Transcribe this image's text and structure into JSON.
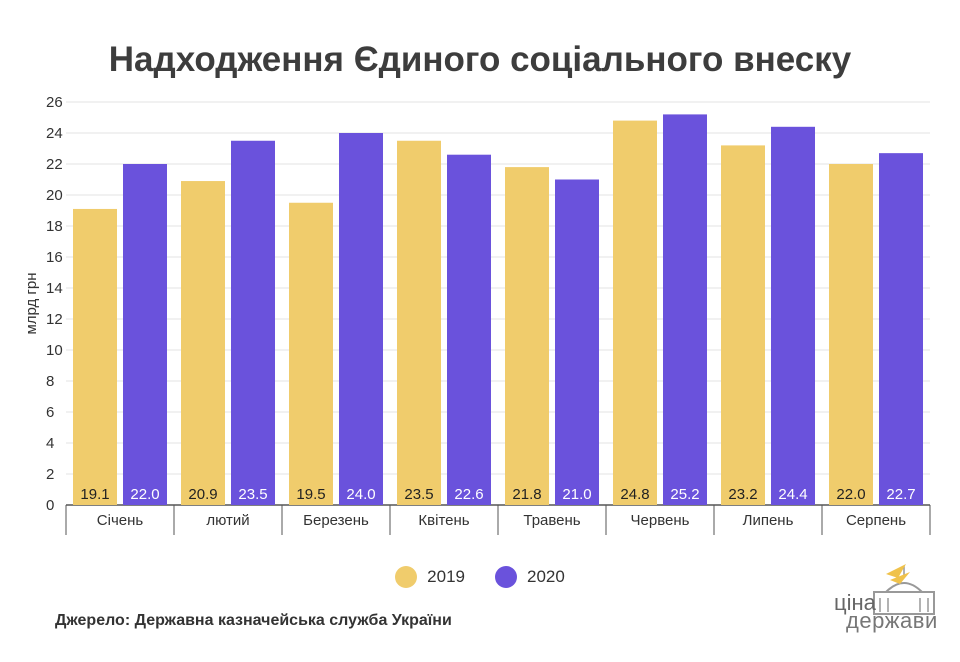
{
  "title": "Надходження Єдиного соціального внеску",
  "source": "Джерело: Державна казначейська служба України",
  "logo": {
    "line1": "ціна",
    "line2": "держави"
  },
  "colors": {
    "s2019": "#f0cc6c",
    "s2020": "#6a52dc",
    "grid": "#e3e3e3",
    "axis": "#555555"
  },
  "chart_data": {
    "type": "bar",
    "title": "Надходження Єдиного соціального внеску",
    "xlabel": "",
    "ylabel": "млрд грн",
    "ylim": [
      0,
      26
    ],
    "yticks": [
      "0",
      "2",
      "4",
      "6",
      "8",
      "10",
      "12",
      "14",
      "16",
      "18",
      "20",
      "22",
      "24",
      "26"
    ],
    "grid": true,
    "legend": "bottom-center",
    "categories": [
      "Січень",
      "лютий",
      "Березень",
      "Квітень",
      "Травень",
      "Червень",
      "Липень",
      "Серпень"
    ],
    "series": [
      {
        "name": "2019",
        "values": [
          19.1,
          20.9,
          19.5,
          23.5,
          21.8,
          24.8,
          23.2,
          22.0
        ],
        "labels": [
          "19.1",
          "20.9",
          "19.5",
          "23.5",
          "21.8",
          "24.8",
          "23.2",
          "22.0"
        ]
      },
      {
        "name": "2020",
        "values": [
          22.0,
          23.5,
          24.0,
          22.6,
          21.0,
          25.2,
          24.4,
          22.7
        ],
        "labels": [
          "22.0",
          "23.5",
          "24.0",
          "22.6",
          "21.0",
          "25.2",
          "24.4",
          "22.7"
        ]
      }
    ]
  }
}
